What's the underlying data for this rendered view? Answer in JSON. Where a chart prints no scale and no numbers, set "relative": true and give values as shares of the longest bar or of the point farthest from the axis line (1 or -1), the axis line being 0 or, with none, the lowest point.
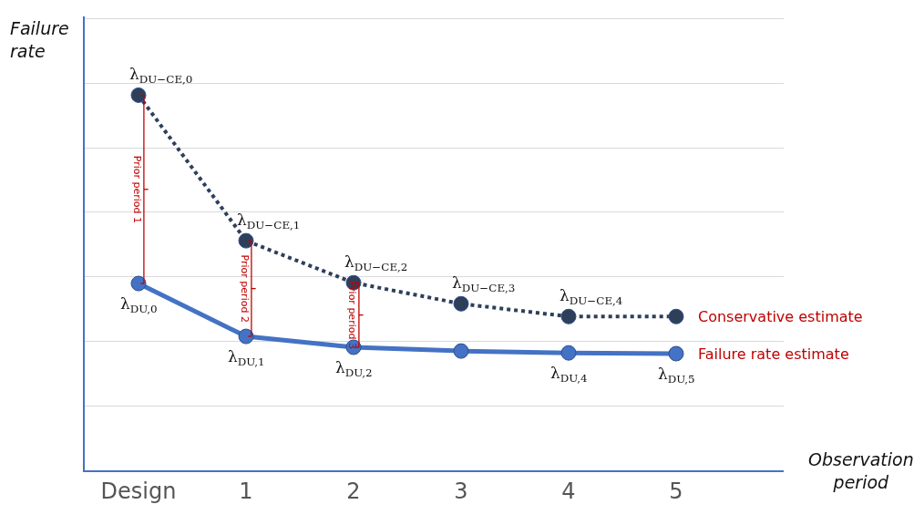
{
  "chart_data": {
    "type": "line",
    "relative": true,
    "categories": [
      "Design",
      "1",
      "2",
      "3",
      "4",
      "5"
    ],
    "xlabel": "Observation period",
    "ylabel": "Failure rate",
    "grid": "y",
    "legend": false,
    "marker": "circle",
    "series": [
      {
        "name": "Conservative estimate",
        "color": "#2e3f5a",
        "line_style": "dotted",
        "values": [
          1,
          0.612,
          0.5,
          0.444,
          0.41,
          0.41
        ]
      },
      {
        "name": "Failure rate estimate",
        "color": "#4472c4",
        "line_style": "solid",
        "values": [
          0.498,
          0.357,
          0.328,
          0.318,
          0.313,
          0.311
        ]
      }
    ],
    "annotations": [
      {
        "text": "λ$_{DU−CE,0}$",
        "x": "Design",
        "y": 1
      },
      {
        "text": "λ$_{DU−CE,1}$",
        "x": "1",
        "y": 0.612
      },
      {
        "text": "λ$_{DU−CE,2}$",
        "x": "2",
        "y": 0.5
      },
      {
        "text": "λ$_{DU−CE,3}$",
        "x": "3",
        "y": 0.444
      },
      {
        "text": "λ$_{DU−CE,4}$",
        "x": "4",
        "y": 0.41
      },
      {
        "text": "λ$_{DU,0}$",
        "x": "Design",
        "y": 0.498
      },
      {
        "text": "λ$_{DU,1}$",
        "x": "1",
        "y": 0.357
      },
      {
        "text": "λ$_{DU,2}$",
        "x": "2",
        "y": 0.328
      },
      {
        "text": "λ$_{DU,4}$",
        "x": "4",
        "y": 0.313
      },
      {
        "text": "λ$_{DU,5}$",
        "x": "5",
        "y": 0.311
      },
      "Prior period 1",
      "Prior period 2",
      "Prior period 3"
    ]
  }
}
